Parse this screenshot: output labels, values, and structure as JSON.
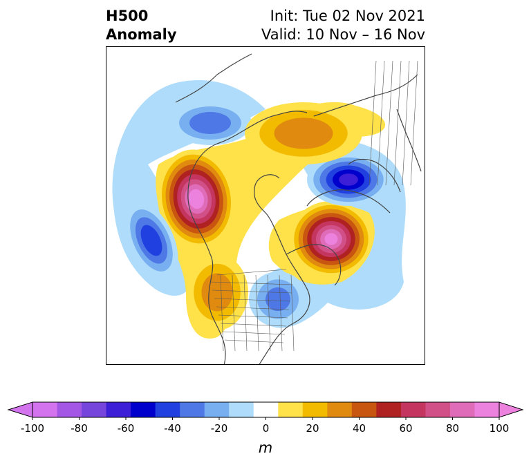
{
  "title": {
    "left_line1": "H500",
    "left_line2": "Anomaly",
    "init": "Init: Tue 02 Nov 2021",
    "valid": "Valid: 10 Nov – 16 Nov"
  },
  "colorbar": {
    "levels": [
      -100,
      -90,
      -80,
      -70,
      -60,
      -50,
      -40,
      -30,
      -20,
      -10,
      10,
      20,
      30,
      40,
      50,
      60,
      70,
      80,
      90,
      100
    ],
    "colors": [
      "#d473ee",
      "#a457e4",
      "#7645dc",
      "#3d1fd8",
      "#0000cd",
      "#2040e0",
      "#4d78e6",
      "#78aff0",
      "#aedcfa",
      "#ffffff",
      "#ffe14a",
      "#f2bb00",
      "#e08a10",
      "#c85510",
      "#b02222",
      "#c43660",
      "#d25088",
      "#de6cb8",
      "#ec82de"
    ],
    "tick_labels": [
      "-100",
      "-80",
      "-60",
      "-40",
      "-20",
      "0",
      "20",
      "40",
      "60",
      "80",
      "100"
    ],
    "units": "m",
    "extend": "both"
  },
  "anomalies": [
    {
      "name": "positive-west-canada",
      "peak_m": 95
    },
    {
      "name": "positive-north-atlantic",
      "peak_m": 90
    },
    {
      "name": "negative-north-pacific",
      "peak_m": -45
    },
    {
      "name": "negative-northern-russia",
      "peak_m": -60
    },
    {
      "name": "negative-east-siberia",
      "peak_m": -35
    },
    {
      "name": "negative-eastern-us",
      "peak_m": -30
    },
    {
      "name": "positive-arctic-siberia",
      "peak_m": 35
    },
    {
      "name": "positive-western-us",
      "peak_m": 35
    }
  ]
}
